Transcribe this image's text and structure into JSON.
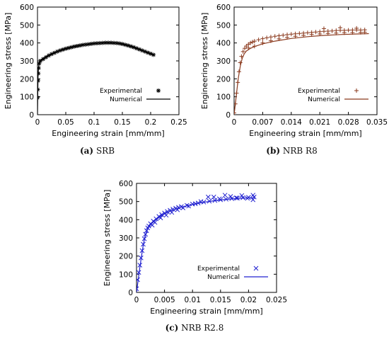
{
  "chart_data": [
    {
      "id": "srb",
      "type": "scatter",
      "caption_letter": "(a)",
      "caption_text": "SRB",
      "xlabel": "Engineering strain [mm/mm]",
      "ylabel": "Engineering stress [MPa]",
      "xlim": [
        0,
        0.25
      ],
      "ylim": [
        0,
        600
      ],
      "xticks": [
        0,
        0.05,
        0.1,
        0.15,
        0.2,
        0.25
      ],
      "xtick_labels": [
        "0",
        "0.05",
        "0.1",
        "0.15",
        "0.2",
        "0.25"
      ],
      "yticks": [
        0,
        100,
        200,
        300,
        400,
        500,
        600
      ],
      "ytick_labels": [
        "0",
        "100",
        "200",
        "300",
        "400",
        "500",
        "600"
      ],
      "legend_position": "bottom-right",
      "series": [
        {
          "name": "Experimental",
          "marker": "asterisk",
          "color": "#000000",
          "points": [
            [
              0,
              95
            ],
            [
              0.0005,
              140
            ],
            [
              0.001,
              190
            ],
            [
              0.0015,
              230
            ],
            [
              0.002,
              260
            ],
            [
              0.003,
              285
            ],
            [
              0.005,
              300
            ],
            [
              0.01,
              310
            ],
            [
              0.015,
              320
            ],
            [
              0.02,
              330
            ],
            [
              0.025,
              338
            ],
            [
              0.03,
              345
            ],
            [
              0.035,
              352
            ],
            [
              0.04,
              358
            ],
            [
              0.045,
              363
            ],
            [
              0.05,
              368
            ],
            [
              0.055,
              372
            ],
            [
              0.06,
              376
            ],
            [
              0.065,
              380
            ],
            [
              0.07,
              383
            ],
            [
              0.075,
              386
            ],
            [
              0.08,
              389
            ],
            [
              0.085,
              391
            ],
            [
              0.09,
              393
            ],
            [
              0.095,
              395
            ],
            [
              0.1,
              397
            ],
            [
              0.105,
              398
            ],
            [
              0.11,
              399
            ],
            [
              0.115,
              400
            ],
            [
              0.12,
              401
            ],
            [
              0.125,
              401
            ],
            [
              0.13,
              401
            ],
            [
              0.135,
              400
            ],
            [
              0.14,
              399
            ],
            [
              0.145,
              397
            ],
            [
              0.15,
              394
            ],
            [
              0.155,
              390
            ],
            [
              0.16,
              386
            ],
            [
              0.165,
              381
            ],
            [
              0.17,
              376
            ],
            [
              0.175,
              370
            ],
            [
              0.18,
              364
            ],
            [
              0.185,
              358
            ],
            [
              0.19,
              352
            ],
            [
              0.195,
              346
            ],
            [
              0.2,
              340
            ],
            [
              0.205,
              334
            ]
          ]
        },
        {
          "name": "Numerical",
          "marker": "line",
          "color": "#000000",
          "points": [
            [
              0,
              0
            ],
            [
              0.0005,
              120
            ],
            [
              0.001,
              220
            ],
            [
              0.002,
              270
            ],
            [
              0.005,
              300
            ],
            [
              0.01,
              315
            ],
            [
              0.02,
              332
            ],
            [
              0.04,
              358
            ],
            [
              0.06,
              376
            ],
            [
              0.08,
              389
            ],
            [
              0.1,
              397
            ],
            [
              0.12,
              401
            ],
            [
              0.14,
              399
            ],
            [
              0.16,
              386
            ],
            [
              0.18,
              364
            ],
            [
              0.2,
              340
            ],
            [
              0.205,
              334
            ]
          ]
        }
      ]
    },
    {
      "id": "nrb-r8",
      "type": "scatter",
      "caption_letter": "(b)",
      "caption_text": "NRB R8",
      "xlabel": "Engineering strain [mm/mm]",
      "ylabel": "Engineering stress [MPa]",
      "xlim": [
        0,
        0.035
      ],
      "ylim": [
        0,
        600
      ],
      "xticks": [
        0,
        0.007,
        0.014,
        0.021,
        0.028,
        0.035
      ],
      "xtick_labels": [
        "0",
        "0.007",
        "0.014",
        "0.021",
        "0.028",
        "0.035"
      ],
      "yticks": [
        0,
        100,
        200,
        300,
        400,
        500,
        600
      ],
      "ytick_labels": [
        "0",
        "100",
        "200",
        "300",
        "400",
        "500",
        "600"
      ],
      "legend_position": "bottom-right",
      "series": [
        {
          "name": "Experimental",
          "marker": "plus",
          "color": "#8b3a1e",
          "points": [
            [
              0,
              10
            ],
            [
              0.0003,
              60
            ],
            [
              0.0006,
              120
            ],
            [
              0.0009,
              180
            ],
            [
              0.0012,
              240
            ],
            [
              0.0015,
              290
            ],
            [
              0.0018,
              325
            ],
            [
              0.0022,
              352
            ],
            [
              0.0026,
              370
            ],
            [
              0.003,
              383
            ],
            [
              0.0035,
              393
            ],
            [
              0.004,
              400
            ],
            [
              0.0045,
              405
            ],
            [
              0.005,
              410
            ],
            [
              0.006,
              418
            ],
            [
              0.007,
              424
            ],
            [
              0.008,
              429
            ],
            [
              0.009,
              433
            ],
            [
              0.01,
              437
            ],
            [
              0.011,
              440
            ],
            [
              0.012,
              443
            ],
            [
              0.013,
              446
            ],
            [
              0.014,
              449
            ],
            [
              0.015,
              451
            ],
            [
              0.016,
              453
            ],
            [
              0.017,
              455
            ],
            [
              0.018,
              457
            ],
            [
              0.019,
              459
            ],
            [
              0.02,
              461
            ],
            [
              0.021,
              463
            ],
            [
              0.022,
              465
            ],
            [
              0.023,
              466
            ],
            [
              0.024,
              467
            ],
            [
              0.025,
              469
            ],
            [
              0.026,
              470
            ],
            [
              0.027,
              470
            ],
            [
              0.028,
              471
            ],
            [
              0.029,
              472
            ],
            [
              0.03,
              472
            ],
            [
              0.031,
              472
            ],
            [
              0.032,
              473
            ],
            [
              0.0035,
              372
            ],
            [
              0.005,
              382
            ],
            [
              0.007,
              400
            ],
            [
              0.009,
              412
            ],
            [
              0.011,
              423
            ],
            [
              0.013,
              431
            ],
            [
              0.015,
              437
            ],
            [
              0.017,
              442
            ],
            [
              0.019,
              447
            ],
            [
              0.021,
              450
            ],
            [
              0.023,
              453
            ],
            [
              0.025,
              455
            ],
            [
              0.027,
              457
            ],
            [
              0.029,
              458
            ],
            [
              0.031,
              459
            ],
            [
              0.032,
              460
            ],
            [
              0.026,
              485
            ],
            [
              0.03,
              482
            ],
            [
              0.022,
              480
            ]
          ]
        },
        {
          "name": "Numerical",
          "marker": "line",
          "color": "#8b3a1e",
          "points": [
            [
              0,
              0
            ],
            [
              0.0005,
              100
            ],
            [
              0.001,
              200
            ],
            [
              0.0015,
              270
            ],
            [
              0.002,
              315
            ],
            [
              0.0025,
              340
            ],
            [
              0.003,
              355
            ],
            [
              0.004,
              370
            ],
            [
              0.005,
              380
            ],
            [
              0.007,
              395
            ],
            [
              0.01,
              410
            ],
            [
              0.014,
              425
            ],
            [
              0.018,
              435
            ],
            [
              0.022,
              442
            ],
            [
              0.026,
              447
            ],
            [
              0.03,
              450
            ],
            [
              0.033,
              452
            ]
          ]
        }
      ]
    },
    {
      "id": "nrb-r2-8",
      "type": "scatter",
      "caption_letter": "(c)",
      "caption_text": "NRB R2.8",
      "xlabel": "Engineering strain [mm/mm]",
      "ylabel": "Engineering stress [MPa]",
      "xlim": [
        0,
        0.025
      ],
      "ylim": [
        0,
        600
      ],
      "xticks": [
        0,
        0.005,
        0.01,
        0.015,
        0.02,
        0.025
      ],
      "xtick_labels": [
        "0",
        "0.005",
        "0.01",
        "0.015",
        "0.02",
        "0.025"
      ],
      "yticks": [
        0,
        100,
        200,
        300,
        400,
        500,
        600
      ],
      "ytick_labels": [
        "0",
        "100",
        "200",
        "300",
        "400",
        "500",
        "600"
      ],
      "legend_position": "bottom-right",
      "series": [
        {
          "name": "Experimental",
          "marker": "x",
          "color": "#2020d0",
          "points": [
            [
              0,
              20
            ],
            [
              0.0002,
              70
            ],
            [
              0.0004,
              110
            ],
            [
              0.0006,
              150
            ],
            [
              0.0008,
              190
            ],
            [
              0.001,
              230
            ],
            [
              0.0012,
              265
            ],
            [
              0.0014,
              295
            ],
            [
              0.0016,
              320
            ],
            [
              0.0018,
              340
            ],
            [
              0.002,
              355
            ],
            [
              0.0022,
              365
            ],
            [
              0.0025,
              378
            ],
            [
              0.003,
              392
            ],
            [
              0.0035,
              405
            ],
            [
              0.004,
              418
            ],
            [
              0.0045,
              428
            ],
            [
              0.005,
              437
            ],
            [
              0.0055,
              445
            ],
            [
              0.006,
              452
            ],
            [
              0.0065,
              458
            ],
            [
              0.007,
              463
            ],
            [
              0.0075,
              468
            ],
            [
              0.008,
              472
            ],
            [
              0.009,
              479
            ],
            [
              0.01,
              486
            ],
            [
              0.011,
              492
            ],
            [
              0.012,
              497
            ],
            [
              0.013,
              502
            ],
            [
              0.014,
              506
            ],
            [
              0.015,
              510
            ],
            [
              0.016,
              513
            ],
            [
              0.017,
              516
            ],
            [
              0.018,
              519
            ],
            [
              0.019,
              521
            ],
            [
              0.02,
              523
            ],
            [
              0.021,
              525
            ],
            [
              0.0028,
              370
            ],
            [
              0.0033,
              385
            ],
            [
              0.0043,
              410
            ],
            [
              0.0053,
              425
            ],
            [
              0.0063,
              440
            ],
            [
              0.0073,
              455
            ],
            [
              0.0083,
              465
            ],
            [
              0.0093,
              475
            ],
            [
              0.0105,
              488
            ],
            [
              0.0115,
              500
            ],
            [
              0.0128,
              525
            ],
            [
              0.0138,
              525
            ],
            [
              0.0148,
              515
            ],
            [
              0.0158,
              535
            ],
            [
              0.0168,
              528
            ],
            [
              0.0178,
              520
            ],
            [
              0.0188,
              533
            ],
            [
              0.0198,
              518
            ],
            [
              0.0208,
              535
            ],
            [
              0.0208,
              510
            ]
          ]
        },
        {
          "name": "Numerical",
          "marker": "line",
          "color": "#2020d0",
          "points": [
            [
              0,
              0
            ],
            [
              0.0003,
              70
            ],
            [
              0.0006,
              140
            ],
            [
              0.0009,
              200
            ],
            [
              0.0012,
              260
            ],
            [
              0.0015,
              305
            ],
            [
              0.0018,
              335
            ],
            [
              0.0021,
              355
            ],
            [
              0.0025,
              372
            ],
            [
              0.003,
              388
            ],
            [
              0.004,
              412
            ],
            [
              0.005,
              432
            ],
            [
              0.006,
              447
            ],
            [
              0.008,
              469
            ],
            [
              0.01,
              484
            ],
            [
              0.012,
              496
            ],
            [
              0.014,
              505
            ],
            [
              0.016,
              512
            ],
            [
              0.018,
              517
            ],
            [
              0.02,
              520
            ],
            [
              0.021,
              521
            ]
          ]
        }
      ]
    }
  ]
}
